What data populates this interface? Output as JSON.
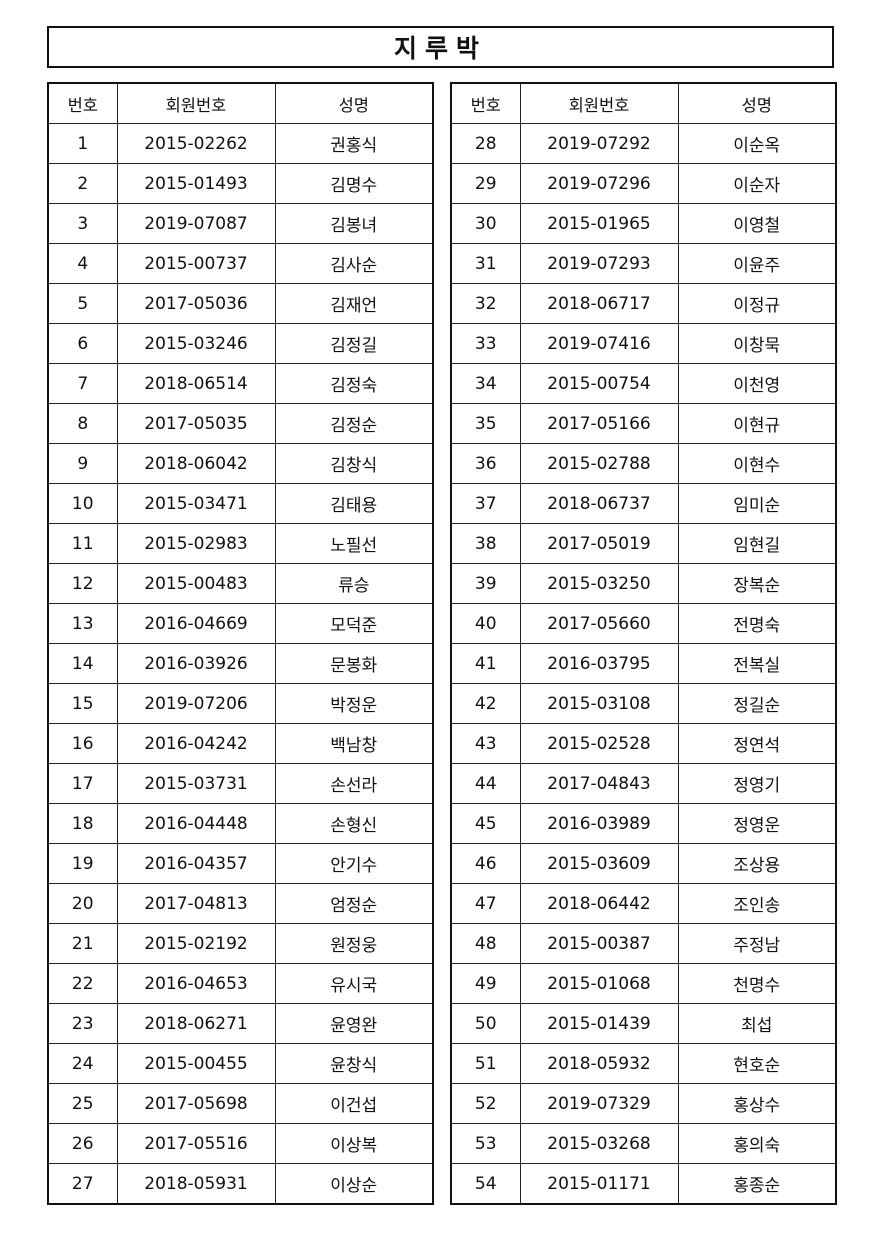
{
  "title": "지루박",
  "headers": {
    "no": "번호",
    "member_id": "회원번호",
    "name": "성명"
  },
  "left_rows": [
    {
      "no": "1",
      "member_id": "2015-02262",
      "name": "권홍식"
    },
    {
      "no": "2",
      "member_id": "2015-01493",
      "name": "김명수"
    },
    {
      "no": "3",
      "member_id": "2019-07087",
      "name": "김봉녀"
    },
    {
      "no": "4",
      "member_id": "2015-00737",
      "name": "김사순"
    },
    {
      "no": "5",
      "member_id": "2017-05036",
      "name": "김재언"
    },
    {
      "no": "6",
      "member_id": "2015-03246",
      "name": "김정길"
    },
    {
      "no": "7",
      "member_id": "2018-06514",
      "name": "김정숙"
    },
    {
      "no": "8",
      "member_id": "2017-05035",
      "name": "김정순"
    },
    {
      "no": "9",
      "member_id": "2018-06042",
      "name": "김창식"
    },
    {
      "no": "10",
      "member_id": "2015-03471",
      "name": "김태용"
    },
    {
      "no": "11",
      "member_id": "2015-02983",
      "name": "노필선"
    },
    {
      "no": "12",
      "member_id": "2015-00483",
      "name": "류승"
    },
    {
      "no": "13",
      "member_id": "2016-04669",
      "name": "모덕준"
    },
    {
      "no": "14",
      "member_id": "2016-03926",
      "name": "문봉화"
    },
    {
      "no": "15",
      "member_id": "2019-07206",
      "name": "박정운"
    },
    {
      "no": "16",
      "member_id": "2016-04242",
      "name": "백남창"
    },
    {
      "no": "17",
      "member_id": "2015-03731",
      "name": "손선라"
    },
    {
      "no": "18",
      "member_id": "2016-04448",
      "name": "손형신"
    },
    {
      "no": "19",
      "member_id": "2016-04357",
      "name": "안기수"
    },
    {
      "no": "20",
      "member_id": "2017-04813",
      "name": "엄정순"
    },
    {
      "no": "21",
      "member_id": "2015-02192",
      "name": "원정웅"
    },
    {
      "no": "22",
      "member_id": "2016-04653",
      "name": "유시국"
    },
    {
      "no": "23",
      "member_id": "2018-06271",
      "name": "윤영완"
    },
    {
      "no": "24",
      "member_id": "2015-00455",
      "name": "윤창식"
    },
    {
      "no": "25",
      "member_id": "2017-05698",
      "name": "이건섭"
    },
    {
      "no": "26",
      "member_id": "2017-05516",
      "name": "이상복"
    },
    {
      "no": "27",
      "member_id": "2018-05931",
      "name": "이상순"
    }
  ],
  "right_rows": [
    {
      "no": "28",
      "member_id": "2019-07292",
      "name": "이순옥"
    },
    {
      "no": "29",
      "member_id": "2019-07296",
      "name": "이순자"
    },
    {
      "no": "30",
      "member_id": "2015-01965",
      "name": "이영철"
    },
    {
      "no": "31",
      "member_id": "2019-07293",
      "name": "이윤주"
    },
    {
      "no": "32",
      "member_id": "2018-06717",
      "name": "이정규"
    },
    {
      "no": "33",
      "member_id": "2019-07416",
      "name": "이창묵"
    },
    {
      "no": "34",
      "member_id": "2015-00754",
      "name": "이천영"
    },
    {
      "no": "35",
      "member_id": "2017-05166",
      "name": "이현규"
    },
    {
      "no": "36",
      "member_id": "2015-02788",
      "name": "이현수"
    },
    {
      "no": "37",
      "member_id": "2018-06737",
      "name": "임미순"
    },
    {
      "no": "38",
      "member_id": "2017-05019",
      "name": "임현길"
    },
    {
      "no": "39",
      "member_id": "2015-03250",
      "name": "장복순"
    },
    {
      "no": "40",
      "member_id": "2017-05660",
      "name": "전명숙"
    },
    {
      "no": "41",
      "member_id": "2016-03795",
      "name": "전복실"
    },
    {
      "no": "42",
      "member_id": "2015-03108",
      "name": "정길순"
    },
    {
      "no": "43",
      "member_id": "2015-02528",
      "name": "정연석"
    },
    {
      "no": "44",
      "member_id": "2017-04843",
      "name": "정영기"
    },
    {
      "no": "45",
      "member_id": "2016-03989",
      "name": "정영운"
    },
    {
      "no": "46",
      "member_id": "2015-03609",
      "name": "조상용"
    },
    {
      "no": "47",
      "member_id": "2018-06442",
      "name": "조인송"
    },
    {
      "no": "48",
      "member_id": "2015-00387",
      "name": "주정남"
    },
    {
      "no": "49",
      "member_id": "2015-01068",
      "name": "천명수"
    },
    {
      "no": "50",
      "member_id": "2015-01439",
      "name": "최섭"
    },
    {
      "no": "51",
      "member_id": "2018-05932",
      "name": "현호순"
    },
    {
      "no": "52",
      "member_id": "2019-07329",
      "name": "홍상수"
    },
    {
      "no": "53",
      "member_id": "2015-03268",
      "name": "홍의숙"
    },
    {
      "no": "54",
      "member_id": "2015-01171",
      "name": "홍종순"
    }
  ]
}
